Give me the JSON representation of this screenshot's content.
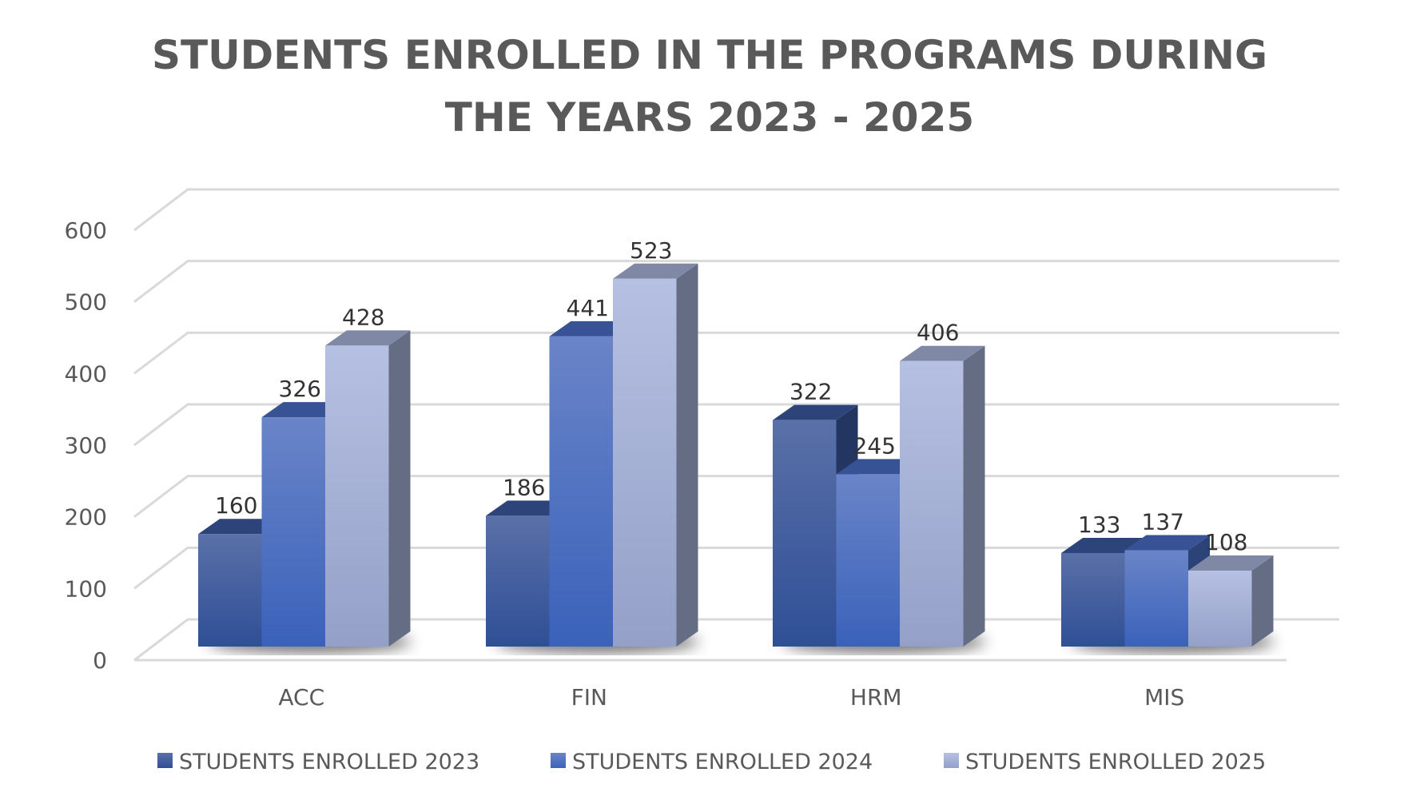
{
  "chart_data": {
    "type": "bar",
    "style": "3d-clustered-column",
    "title": [
      "STUDENTS ENROLLED IN THE PROGRAMS DURING",
      "THE YEARS 2023 - 2025"
    ],
    "categories": [
      "ACC",
      "FIN",
      "HRM",
      "MIS"
    ],
    "series": [
      {
        "name": "STUDENTS ENROLLED 2023",
        "values": [
          160,
          186,
          322,
          133
        ],
        "color": "#3b5aa3"
      },
      {
        "name": "STUDENTS ENROLLED 2024",
        "values": [
          326,
          441,
          245,
          137
        ],
        "color": "#4a6fc6"
      },
      {
        "name": "STUDENTS ENROLLED 2025",
        "values": [
          428,
          523,
          406,
          108
        ],
        "color": "#a9b5dc"
      }
    ],
    "yticks": [
      "0",
      "100",
      "200",
      "300",
      "400",
      "500",
      "600"
    ],
    "ylim": [
      0,
      600
    ],
    "grid": true,
    "legend": "bottom"
  }
}
